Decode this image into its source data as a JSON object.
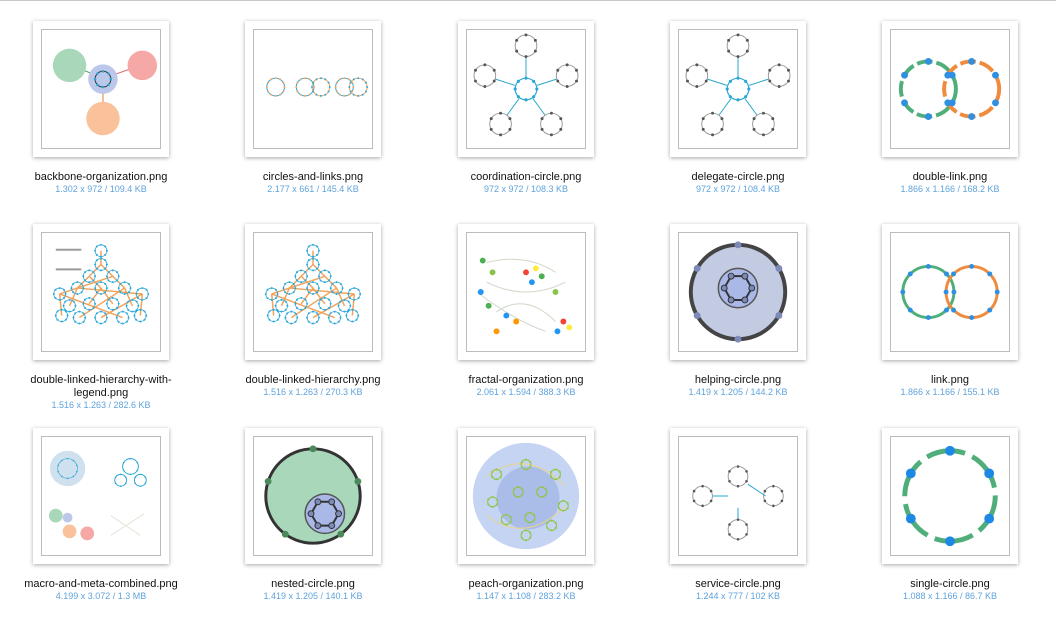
{
  "items": [
    {
      "name": "backbone-organization.png",
      "meta": "1.302 x 972 / 109.4 KB"
    },
    {
      "name": "circles-and-links.png",
      "meta": "2.177 x 661 / 145.4 KB"
    },
    {
      "name": "coordination-circle.png",
      "meta": "972 x 972 / 108.3 KB"
    },
    {
      "name": "delegate-circle.png",
      "meta": "972 x 972 / 108.4 KB"
    },
    {
      "name": "double-link.png",
      "meta": "1.866 x 1.166 / 168.2 KB"
    },
    {
      "name": "double-linked-hierarchy-with-legend.png",
      "meta": "1.516 x 1.263 / 282.6 KB"
    },
    {
      "name": "double-linked-hierarchy.png",
      "meta": "1.516 x 1.263 / 270.3 KB"
    },
    {
      "name": "fractal-organization.png",
      "meta": "2.061 x 1.594 / 388.3 KB"
    },
    {
      "name": "helping-circle.png",
      "meta": "1.419 x 1.205 / 144.2 KB"
    },
    {
      "name": "link.png",
      "meta": "1.866 x 1.166 / 155.1 KB"
    },
    {
      "name": "macro-and-meta-combined.png",
      "meta": "4.199 x 3.072 / 1.3 MB"
    },
    {
      "name": "nested-circle.png",
      "meta": "1.419 x 1.205 / 140.1 KB"
    },
    {
      "name": "peach-organization.png",
      "meta": "1.147 x 1.108 / 283.2 KB"
    },
    {
      "name": "service-circle.png",
      "meta": "1.244 x 777 / 102 KB"
    },
    {
      "name": "single-circle.png",
      "meta": "1.088 x 1.166 / 86.7 KB"
    }
  ]
}
